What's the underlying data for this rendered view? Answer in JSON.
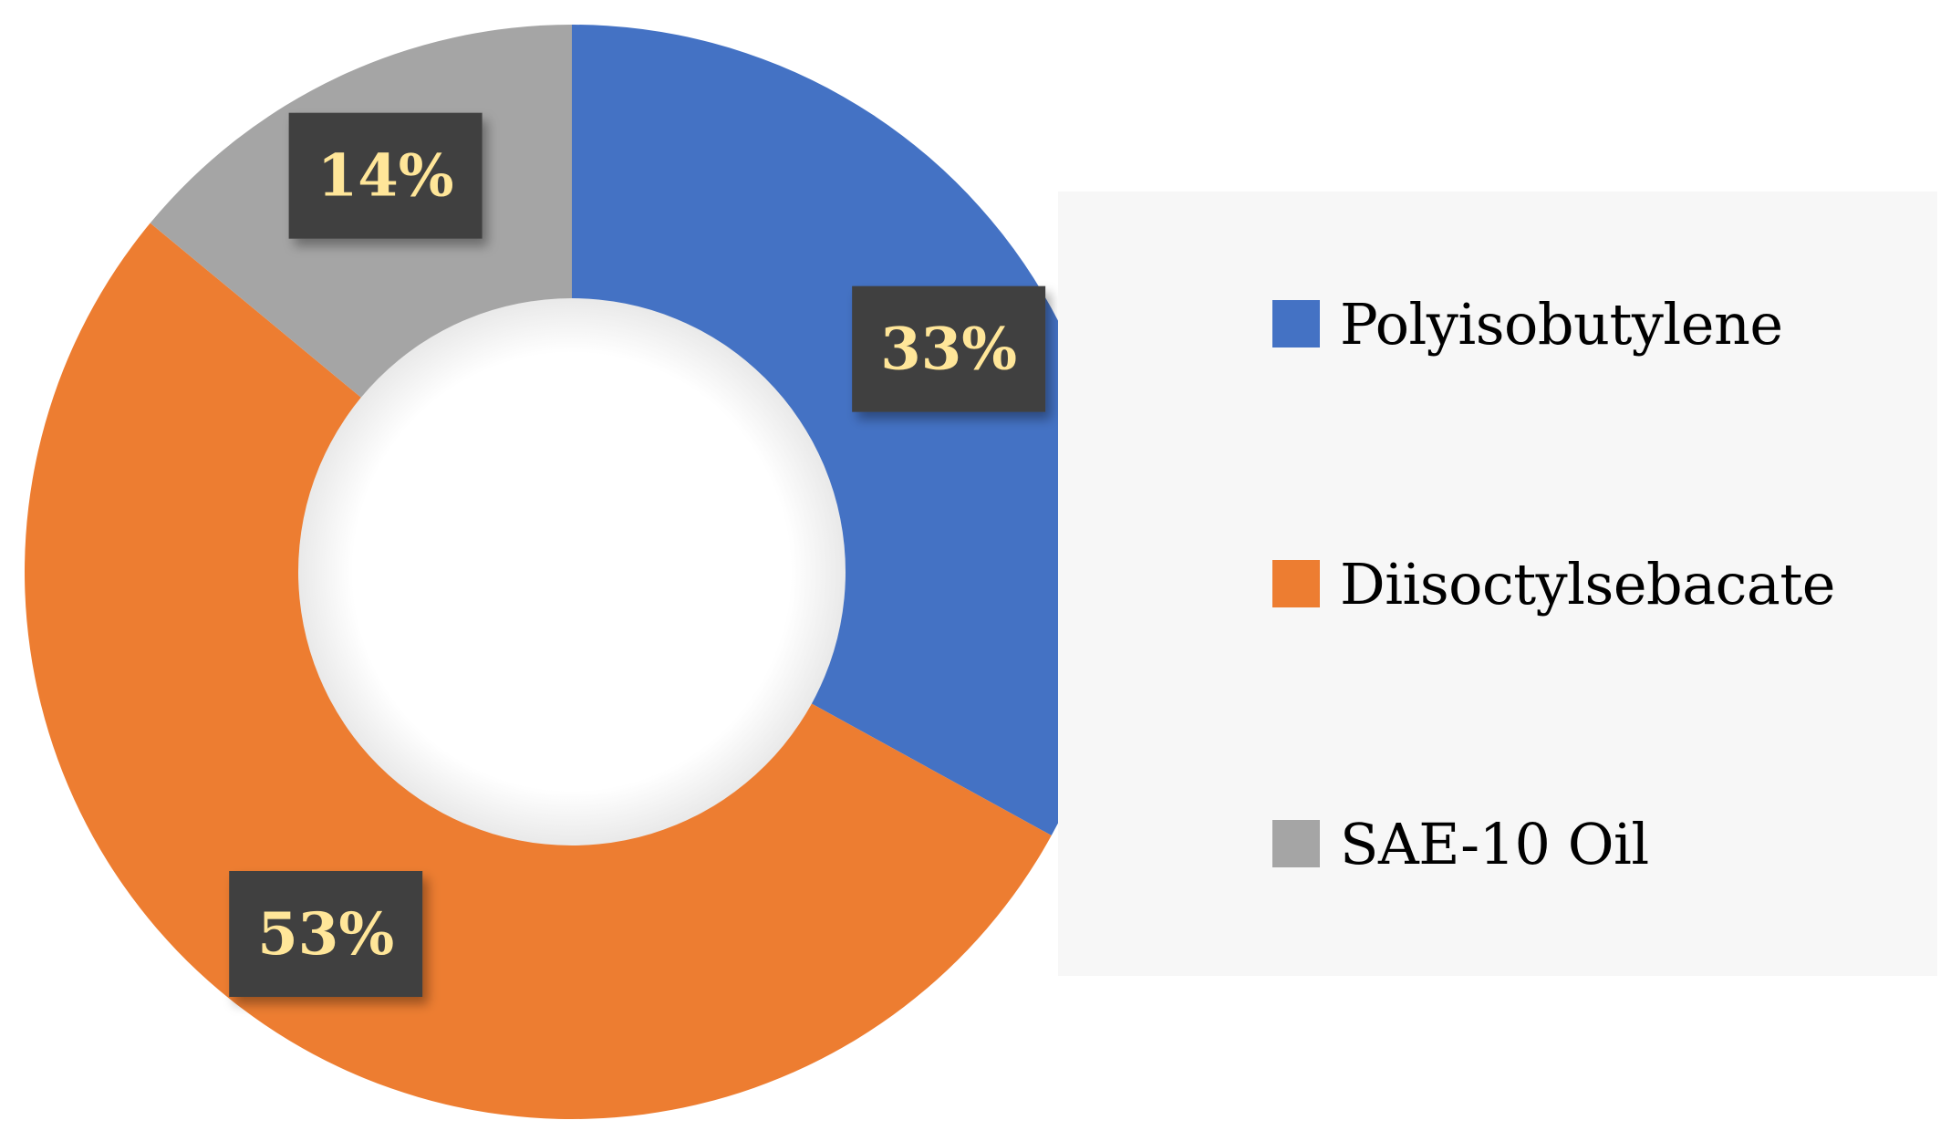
{
  "chart_data": {
    "type": "pie",
    "variant": "donut",
    "categories": [
      "Polyisobutylene",
      "Diisoctylsebacate",
      "SAE-10 Oil"
    ],
    "values": [
      33,
      53,
      14
    ],
    "data_labels": [
      "33%",
      "53%",
      "14%"
    ],
    "colors": [
      "#4472c4",
      "#ed7d31",
      "#a5a5a5"
    ],
    "label_box_color": "#404040",
    "label_text_color": "#ffe699",
    "legend_position": "right",
    "title": ""
  },
  "legend": {
    "items": [
      {
        "label": "Polyisobutylene",
        "color": "#4472c4"
      },
      {
        "label": "Diisoctylsebacate",
        "color": "#ed7d31"
      },
      {
        "label": "SAE-10 Oil",
        "color": "#a5a5a5"
      }
    ]
  }
}
